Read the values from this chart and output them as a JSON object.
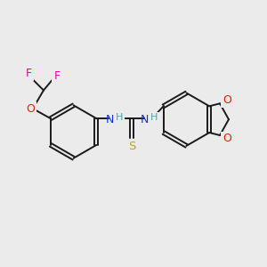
{
  "background_color": "#ebebeb",
  "bond_color": "#1a1a1a",
  "atom_colors": {
    "F": "#e800aa",
    "O": "#dd2200",
    "N": "#1133ee",
    "S": "#bbaa00",
    "H_color": "#44aaaa",
    "C": "#1a1a1a"
  },
  "figsize": [
    3.0,
    3.0
  ],
  "dpi": 100
}
